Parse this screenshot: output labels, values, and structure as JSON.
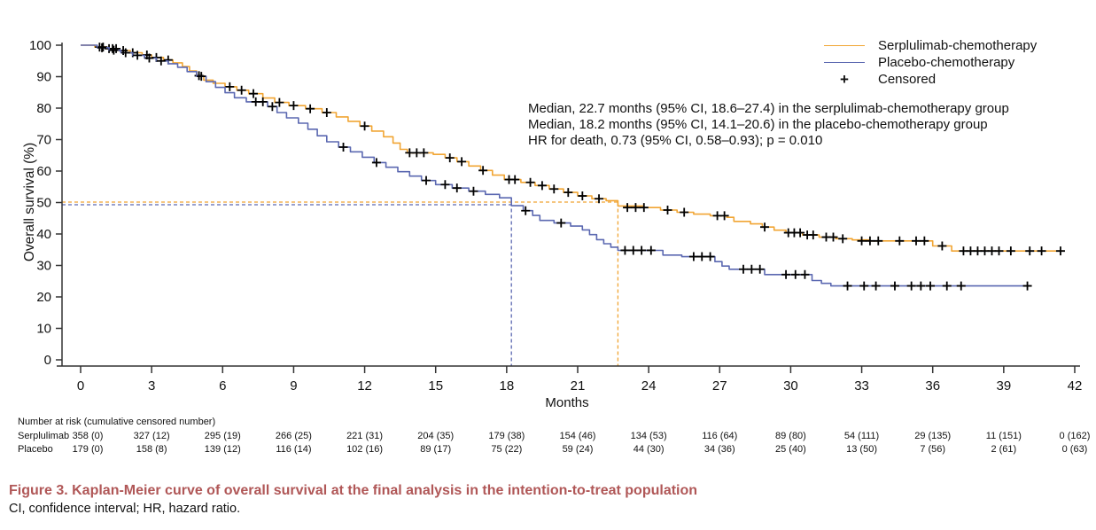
{
  "figure": {
    "caption_title": "Figure 3.  Kaplan-Meier curve of overall survival at the final analysis in the intention-to-treat population",
    "caption_note": "CI, confidence interval; HR, hazard ratio.",
    "caption_color": "#B05757"
  },
  "annotation": {
    "lines": [
      "Median, 22.7 months (95% CI, 18.6–27.4) in the serplulimab-chemotherapy group",
      "Median, 18.2 months (95% CI, 14.1–20.6) in the placebo-chemotherapy group",
      "HR for death, 0.73 (95% CI, 0.58–0.93); p = 0.010"
    ]
  },
  "legend": {
    "items": [
      {
        "label": "Serplulimab-chemotherapy",
        "type": "line",
        "color": "#F1A533"
      },
      {
        "label": "Placebo-chemotherapy",
        "type": "line",
        "color": "#5B68B1"
      },
      {
        "label": "Censored",
        "type": "plus",
        "color": "#000000"
      }
    ]
  },
  "chart_data": {
    "type": "line",
    "subtype": "kaplan_meier_step",
    "xlabel": "Months",
    "ylabel": "Overall survival (%)",
    "xlim": [
      0,
      42
    ],
    "xtick_step": 3,
    "ylim": [
      0,
      100
    ],
    "ytick_step": 10,
    "grid": false,
    "legend_position": "top-right",
    "median_reference_pct": 50,
    "series": [
      {
        "name": "Serplulimab-chemotherapy",
        "color": "#F1A533",
        "median_months": 22.7,
        "median_ci": "18.6–27.4",
        "points": [
          [
            0,
            100
          ],
          [
            0.6,
            99.4
          ],
          [
            1.1,
            98.9
          ],
          [
            1.6,
            98.3
          ],
          [
            2.1,
            97.6
          ],
          [
            2.6,
            96.9
          ],
          [
            3,
            96.1
          ],
          [
            3.5,
            95.3
          ],
          [
            3.9,
            94.4
          ],
          [
            4.3,
            93.2
          ],
          [
            4.6,
            91.8
          ],
          [
            4.9,
            90.3
          ],
          [
            5.2,
            88.9
          ],
          [
            5.6,
            87.9
          ],
          [
            6.1,
            86.8
          ],
          [
            6.6,
            85.7
          ],
          [
            7.1,
            84.6
          ],
          [
            7.7,
            83.2
          ],
          [
            8.2,
            81.8
          ],
          [
            8.8,
            80.8
          ],
          [
            9.5,
            79.8
          ],
          [
            10.2,
            78.6
          ],
          [
            10.8,
            77.2
          ],
          [
            11.3,
            75.8
          ],
          [
            11.8,
            74.3
          ],
          [
            12.3,
            72.7
          ],
          [
            12.8,
            70.9
          ],
          [
            13.2,
            68.9
          ],
          [
            13.5,
            66.9
          ],
          [
            13.8,
            65.8
          ],
          [
            14.9,
            65.3
          ],
          [
            15.4,
            64.2
          ],
          [
            15.9,
            63
          ],
          [
            16.4,
            61.6
          ],
          [
            16.9,
            60.2
          ],
          [
            17.4,
            58.7
          ],
          [
            17.9,
            57.3
          ],
          [
            18.6,
            56.4
          ],
          [
            19.2,
            55.4
          ],
          [
            19.8,
            54.3
          ],
          [
            20.4,
            53.2
          ],
          [
            21,
            52.1
          ],
          [
            21.6,
            51.2
          ],
          [
            22.2,
            50.6
          ],
          [
            22.7,
            48.9
          ],
          [
            23.8,
            48.4
          ],
          [
            24.5,
            47.6
          ],
          [
            25.2,
            46.9
          ],
          [
            25.9,
            46.3
          ],
          [
            26.6,
            45.8
          ],
          [
            27.3,
            45.3
          ],
          [
            27.6,
            44
          ],
          [
            28.3,
            43.2
          ],
          [
            28.8,
            42.2
          ],
          [
            29.3,
            41.2
          ],
          [
            29.8,
            40.4
          ],
          [
            30.5,
            39.7
          ],
          [
            31.2,
            39
          ],
          [
            31.9,
            38.5
          ],
          [
            32.6,
            38.1
          ],
          [
            33.3,
            37.8
          ],
          [
            36,
            36.2
          ],
          [
            36.8,
            34.6
          ],
          [
            41.5,
            34.6
          ]
        ],
        "censor_marks": [
          [
            0.8,
            99.4
          ],
          [
            0.95,
            99.4
          ],
          [
            1.2,
            98.9
          ],
          [
            1.35,
            98.9
          ],
          [
            1.5,
            98.9
          ],
          [
            1.8,
            98.3
          ],
          [
            2.2,
            97.6
          ],
          [
            2.8,
            96.9
          ],
          [
            3.2,
            96.1
          ],
          [
            3.7,
            95.3
          ],
          [
            5,
            90.3
          ],
          [
            6.3,
            86.8
          ],
          [
            6.8,
            85.7
          ],
          [
            7.3,
            84.6
          ],
          [
            8.4,
            81.8
          ],
          [
            9,
            80.8
          ],
          [
            9.7,
            79.8
          ],
          [
            10.4,
            78.6
          ],
          [
            12,
            74.3
          ],
          [
            13.9,
            65.8
          ],
          [
            14.2,
            65.8
          ],
          [
            14.5,
            65.8
          ],
          [
            15.6,
            64.2
          ],
          [
            16.1,
            63
          ],
          [
            17,
            60.2
          ],
          [
            18.1,
            57.3
          ],
          [
            18.35,
            57.3
          ],
          [
            19,
            56.4
          ],
          [
            19.5,
            55.4
          ],
          [
            20,
            54.3
          ],
          [
            20.6,
            53.2
          ],
          [
            21.2,
            52.1
          ],
          [
            21.9,
            51.2
          ],
          [
            23.1,
            48.4
          ],
          [
            23.45,
            48.4
          ],
          [
            23.8,
            48.4
          ],
          [
            24.8,
            47.6
          ],
          [
            25.5,
            46.9
          ],
          [
            26.9,
            45.8
          ],
          [
            27.2,
            45.8
          ],
          [
            28.9,
            42.2
          ],
          [
            29.9,
            40.4
          ],
          [
            30.15,
            40.4
          ],
          [
            30.4,
            40.4
          ],
          [
            30.7,
            39.7
          ],
          [
            30.95,
            39.7
          ],
          [
            31.5,
            39
          ],
          [
            31.8,
            39
          ],
          [
            32.2,
            38.5
          ],
          [
            33,
            37.8
          ],
          [
            33.35,
            37.8
          ],
          [
            33.7,
            37.8
          ],
          [
            34.6,
            37.8
          ],
          [
            35.3,
            37.8
          ],
          [
            35.65,
            37.8
          ],
          [
            36.4,
            36.2
          ],
          [
            37.3,
            34.6
          ],
          [
            37.6,
            34.6
          ],
          [
            37.9,
            34.6
          ],
          [
            38.2,
            34.6
          ],
          [
            38.5,
            34.6
          ],
          [
            38.8,
            34.6
          ],
          [
            39.3,
            34.6
          ],
          [
            40.1,
            34.6
          ],
          [
            40.6,
            34.6
          ],
          [
            41.4,
            34.6
          ]
        ]
      },
      {
        "name": "Placebo-chemotherapy",
        "color": "#5B68B1",
        "median_months": 18.2,
        "median_ci": "14.1–20.6",
        "points": [
          [
            0,
            100
          ],
          [
            0.7,
            99.2
          ],
          [
            1.2,
            98.4
          ],
          [
            1.7,
            97.6
          ],
          [
            2.2,
            96.8
          ],
          [
            2.7,
            95.9
          ],
          [
            3.2,
            95
          ],
          [
            3.7,
            94.1
          ],
          [
            4.1,
            93
          ],
          [
            4.5,
            91.6
          ],
          [
            4.9,
            90.1
          ],
          [
            5.3,
            88.4
          ],
          [
            5.7,
            86.6
          ],
          [
            6.1,
            84.9
          ],
          [
            6.5,
            83.3
          ],
          [
            7,
            82
          ],
          [
            7.9,
            80.5
          ],
          [
            8.3,
            78.6
          ],
          [
            8.7,
            76.9
          ],
          [
            9.2,
            75.2
          ],
          [
            9.6,
            73.3
          ],
          [
            10,
            71.2
          ],
          [
            10.4,
            69.3
          ],
          [
            10.9,
            67.6
          ],
          [
            11.4,
            66.1
          ],
          [
            11.9,
            64.4
          ],
          [
            12.4,
            62.7
          ],
          [
            12.9,
            61.2
          ],
          [
            13.4,
            59.8
          ],
          [
            13.9,
            58.4
          ],
          [
            14.4,
            57
          ],
          [
            15,
            55.7
          ],
          [
            15.7,
            54.6
          ],
          [
            16.4,
            53.6
          ],
          [
            17.1,
            52.6
          ],
          [
            17.7,
            51.5
          ],
          [
            18.2,
            49
          ],
          [
            18.7,
            47.4
          ],
          [
            19.1,
            45.9
          ],
          [
            19.4,
            44.3
          ],
          [
            20,
            43.5
          ],
          [
            20.7,
            42.5
          ],
          [
            21.2,
            41.3
          ],
          [
            21.5,
            39.8
          ],
          [
            21.8,
            38.2
          ],
          [
            22.1,
            36.9
          ],
          [
            22.4,
            35.8
          ],
          [
            22.7,
            34.8
          ],
          [
            24.6,
            33.3
          ],
          [
            25.4,
            32.8
          ],
          [
            26.8,
            31.2
          ],
          [
            27.1,
            29.8
          ],
          [
            27.4,
            28.8
          ],
          [
            28.9,
            27.1
          ],
          [
            30.9,
            25.2
          ],
          [
            31.3,
            24.3
          ],
          [
            31.7,
            23.5
          ],
          [
            40.1,
            23.5
          ]
        ],
        "censor_marks": [
          [
            0.9,
            99.2
          ],
          [
            1.4,
            98.4
          ],
          [
            1.9,
            97.6
          ],
          [
            2.4,
            96.8
          ],
          [
            2.9,
            95.9
          ],
          [
            3.4,
            95
          ],
          [
            5.1,
            90.1
          ],
          [
            7.4,
            82
          ],
          [
            7.7,
            82
          ],
          [
            8.1,
            80.5
          ],
          [
            11.1,
            67.6
          ],
          [
            12.5,
            62.7
          ],
          [
            14.6,
            57
          ],
          [
            15.4,
            55.7
          ],
          [
            15.9,
            54.6
          ],
          [
            16.6,
            53.6
          ],
          [
            18.8,
            47.4
          ],
          [
            20.3,
            43.5
          ],
          [
            23,
            34.8
          ],
          [
            23.35,
            34.8
          ],
          [
            23.7,
            34.8
          ],
          [
            24.1,
            34.8
          ],
          [
            25.9,
            32.8
          ],
          [
            26.25,
            32.8
          ],
          [
            26.6,
            32.8
          ],
          [
            28,
            28.8
          ],
          [
            28.35,
            28.8
          ],
          [
            28.7,
            28.8
          ],
          [
            29.8,
            27.1
          ],
          [
            30.2,
            27.1
          ],
          [
            30.6,
            27.1
          ],
          [
            32.4,
            23.5
          ],
          [
            33.1,
            23.5
          ],
          [
            33.6,
            23.5
          ],
          [
            34.4,
            23.5
          ],
          [
            35.1,
            23.5
          ],
          [
            35.5,
            23.5
          ],
          [
            35.9,
            23.5
          ],
          [
            36.6,
            23.5
          ],
          [
            37.2,
            23.5
          ],
          [
            40,
            23.5
          ]
        ]
      }
    ],
    "hr_annotation": "HR for death, 0.73 (95% CI, 0.58–0.93); p = 0.010"
  },
  "risk_table": {
    "header": "Number at risk (cumulative censored number)",
    "timepoints": [
      0,
      3,
      6,
      9,
      12,
      15,
      18,
      21,
      24,
      27,
      30,
      33,
      36,
      39,
      42
    ],
    "rows": [
      {
        "label": "Serplulimab",
        "values": [
          "358 (0)",
          "327 (12)",
          "295 (19)",
          "266 (25)",
          "221 (31)",
          "204 (35)",
          "179 (38)",
          "154 (46)",
          "134 (53)",
          "116 (64)",
          "89 (80)",
          "54 (111)",
          "29 (135)",
          "11 (151)",
          "0 (162)"
        ]
      },
      {
        "label": "Placebo",
        "values": [
          "179 (0)",
          "158 (8)",
          "139 (12)",
          "116 (14)",
          "102 (16)",
          "89 (17)",
          "75 (22)",
          "59 (24)",
          "44 (30)",
          "34 (36)",
          "25 (40)",
          "13 (50)",
          "7 (56)",
          "2 (61)",
          "0 (63)"
        ]
      }
    ]
  }
}
